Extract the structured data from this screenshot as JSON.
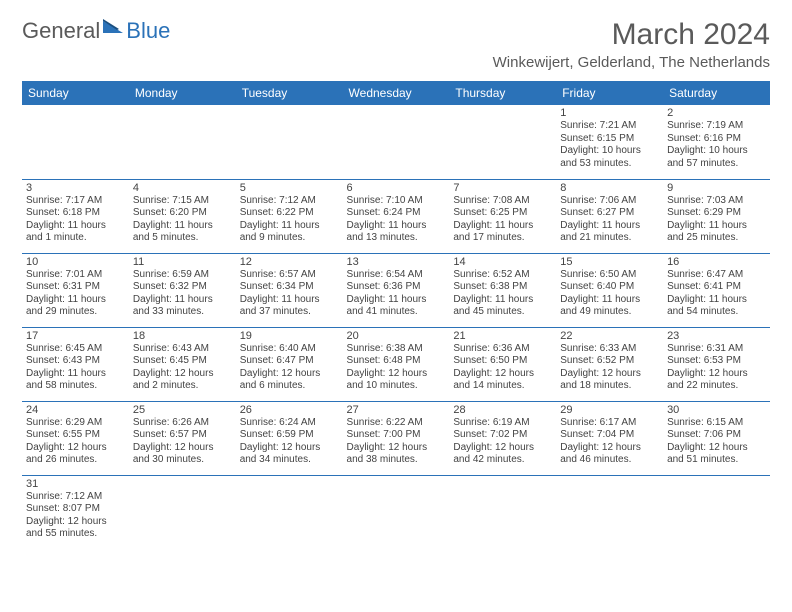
{
  "logo": {
    "part1": "General",
    "part2": "Blue"
  },
  "title": "March 2024",
  "location": "Winkewijert, Gelderland, The Netherlands",
  "colors": {
    "header_bg": "#2b72b8",
    "header_fg": "#ffffff",
    "text": "#434343",
    "logo_gray": "#5a5a5a",
    "logo_blue": "#2b72b8",
    "cell_border": "#2b72b8"
  },
  "weekdays": [
    "Sunday",
    "Monday",
    "Tuesday",
    "Wednesday",
    "Thursday",
    "Friday",
    "Saturday"
  ],
  "weeks": [
    [
      null,
      null,
      null,
      null,
      null,
      {
        "day": "1",
        "sunrise": "Sunrise: 7:21 AM",
        "sunset": "Sunset: 6:15 PM",
        "daylight1": "Daylight: 10 hours",
        "daylight2": "and 53 minutes."
      },
      {
        "day": "2",
        "sunrise": "Sunrise: 7:19 AM",
        "sunset": "Sunset: 6:16 PM",
        "daylight1": "Daylight: 10 hours",
        "daylight2": "and 57 minutes."
      }
    ],
    [
      {
        "day": "3",
        "sunrise": "Sunrise: 7:17 AM",
        "sunset": "Sunset: 6:18 PM",
        "daylight1": "Daylight: 11 hours",
        "daylight2": "and 1 minute."
      },
      {
        "day": "4",
        "sunrise": "Sunrise: 7:15 AM",
        "sunset": "Sunset: 6:20 PM",
        "daylight1": "Daylight: 11 hours",
        "daylight2": "and 5 minutes."
      },
      {
        "day": "5",
        "sunrise": "Sunrise: 7:12 AM",
        "sunset": "Sunset: 6:22 PM",
        "daylight1": "Daylight: 11 hours",
        "daylight2": "and 9 minutes."
      },
      {
        "day": "6",
        "sunrise": "Sunrise: 7:10 AM",
        "sunset": "Sunset: 6:24 PM",
        "daylight1": "Daylight: 11 hours",
        "daylight2": "and 13 minutes."
      },
      {
        "day": "7",
        "sunrise": "Sunrise: 7:08 AM",
        "sunset": "Sunset: 6:25 PM",
        "daylight1": "Daylight: 11 hours",
        "daylight2": "and 17 minutes."
      },
      {
        "day": "8",
        "sunrise": "Sunrise: 7:06 AM",
        "sunset": "Sunset: 6:27 PM",
        "daylight1": "Daylight: 11 hours",
        "daylight2": "and 21 minutes."
      },
      {
        "day": "9",
        "sunrise": "Sunrise: 7:03 AM",
        "sunset": "Sunset: 6:29 PM",
        "daylight1": "Daylight: 11 hours",
        "daylight2": "and 25 minutes."
      }
    ],
    [
      {
        "day": "10",
        "sunrise": "Sunrise: 7:01 AM",
        "sunset": "Sunset: 6:31 PM",
        "daylight1": "Daylight: 11 hours",
        "daylight2": "and 29 minutes."
      },
      {
        "day": "11",
        "sunrise": "Sunrise: 6:59 AM",
        "sunset": "Sunset: 6:32 PM",
        "daylight1": "Daylight: 11 hours",
        "daylight2": "and 33 minutes."
      },
      {
        "day": "12",
        "sunrise": "Sunrise: 6:57 AM",
        "sunset": "Sunset: 6:34 PM",
        "daylight1": "Daylight: 11 hours",
        "daylight2": "and 37 minutes."
      },
      {
        "day": "13",
        "sunrise": "Sunrise: 6:54 AM",
        "sunset": "Sunset: 6:36 PM",
        "daylight1": "Daylight: 11 hours",
        "daylight2": "and 41 minutes."
      },
      {
        "day": "14",
        "sunrise": "Sunrise: 6:52 AM",
        "sunset": "Sunset: 6:38 PM",
        "daylight1": "Daylight: 11 hours",
        "daylight2": "and 45 minutes."
      },
      {
        "day": "15",
        "sunrise": "Sunrise: 6:50 AM",
        "sunset": "Sunset: 6:40 PM",
        "daylight1": "Daylight: 11 hours",
        "daylight2": "and 49 minutes."
      },
      {
        "day": "16",
        "sunrise": "Sunrise: 6:47 AM",
        "sunset": "Sunset: 6:41 PM",
        "daylight1": "Daylight: 11 hours",
        "daylight2": "and 54 minutes."
      }
    ],
    [
      {
        "day": "17",
        "sunrise": "Sunrise: 6:45 AM",
        "sunset": "Sunset: 6:43 PM",
        "daylight1": "Daylight: 11 hours",
        "daylight2": "and 58 minutes."
      },
      {
        "day": "18",
        "sunrise": "Sunrise: 6:43 AM",
        "sunset": "Sunset: 6:45 PM",
        "daylight1": "Daylight: 12 hours",
        "daylight2": "and 2 minutes."
      },
      {
        "day": "19",
        "sunrise": "Sunrise: 6:40 AM",
        "sunset": "Sunset: 6:47 PM",
        "daylight1": "Daylight: 12 hours",
        "daylight2": "and 6 minutes."
      },
      {
        "day": "20",
        "sunrise": "Sunrise: 6:38 AM",
        "sunset": "Sunset: 6:48 PM",
        "daylight1": "Daylight: 12 hours",
        "daylight2": "and 10 minutes."
      },
      {
        "day": "21",
        "sunrise": "Sunrise: 6:36 AM",
        "sunset": "Sunset: 6:50 PM",
        "daylight1": "Daylight: 12 hours",
        "daylight2": "and 14 minutes."
      },
      {
        "day": "22",
        "sunrise": "Sunrise: 6:33 AM",
        "sunset": "Sunset: 6:52 PM",
        "daylight1": "Daylight: 12 hours",
        "daylight2": "and 18 minutes."
      },
      {
        "day": "23",
        "sunrise": "Sunrise: 6:31 AM",
        "sunset": "Sunset: 6:53 PM",
        "daylight1": "Daylight: 12 hours",
        "daylight2": "and 22 minutes."
      }
    ],
    [
      {
        "day": "24",
        "sunrise": "Sunrise: 6:29 AM",
        "sunset": "Sunset: 6:55 PM",
        "daylight1": "Daylight: 12 hours",
        "daylight2": "and 26 minutes."
      },
      {
        "day": "25",
        "sunrise": "Sunrise: 6:26 AM",
        "sunset": "Sunset: 6:57 PM",
        "daylight1": "Daylight: 12 hours",
        "daylight2": "and 30 minutes."
      },
      {
        "day": "26",
        "sunrise": "Sunrise: 6:24 AM",
        "sunset": "Sunset: 6:59 PM",
        "daylight1": "Daylight: 12 hours",
        "daylight2": "and 34 minutes."
      },
      {
        "day": "27",
        "sunrise": "Sunrise: 6:22 AM",
        "sunset": "Sunset: 7:00 PM",
        "daylight1": "Daylight: 12 hours",
        "daylight2": "and 38 minutes."
      },
      {
        "day": "28",
        "sunrise": "Sunrise: 6:19 AM",
        "sunset": "Sunset: 7:02 PM",
        "daylight1": "Daylight: 12 hours",
        "daylight2": "and 42 minutes."
      },
      {
        "day": "29",
        "sunrise": "Sunrise: 6:17 AM",
        "sunset": "Sunset: 7:04 PM",
        "daylight1": "Daylight: 12 hours",
        "daylight2": "and 46 minutes."
      },
      {
        "day": "30",
        "sunrise": "Sunrise: 6:15 AM",
        "sunset": "Sunset: 7:06 PM",
        "daylight1": "Daylight: 12 hours",
        "daylight2": "and 51 minutes."
      }
    ],
    [
      {
        "day": "31",
        "sunrise": "Sunrise: 7:12 AM",
        "sunset": "Sunset: 8:07 PM",
        "daylight1": "Daylight: 12 hours",
        "daylight2": "and 55 minutes."
      },
      null,
      null,
      null,
      null,
      null,
      null
    ]
  ]
}
